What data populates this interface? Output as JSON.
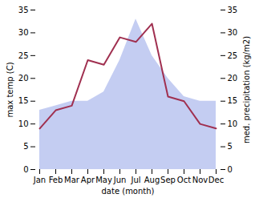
{
  "chart_data": {
    "type": "line",
    "categories": [
      "Jan",
      "Feb",
      "Mar",
      "Apr",
      "May",
      "Jun",
      "Jul",
      "Aug",
      "Sep",
      "Oct",
      "Nov",
      "Dec"
    ],
    "xlabel": "date (month)",
    "ylabel": "max temp (C)",
    "y2label": "med. precipitation (kg/m2)",
    "ylim": [
      0,
      35
    ],
    "yticks": [
      0,
      5,
      10,
      15,
      20,
      25,
      30,
      35
    ],
    "y2lim": [
      0,
      35
    ],
    "y2ticks": [
      0,
      5,
      10,
      15,
      20,
      25,
      30,
      35
    ],
    "grid": false,
    "series": [
      {
        "type": "area",
        "axis": "y2",
        "color": "#b0bced",
        "values": [
          13,
          14,
          15,
          15,
          17,
          24,
          33,
          25,
          20,
          16,
          15,
          15
        ]
      },
      {
        "type": "line",
        "color": "#a03050",
        "values": [
          9,
          13,
          14,
          24,
          23,
          29,
          28,
          32,
          16,
          15,
          10,
          9
        ]
      }
    ]
  }
}
